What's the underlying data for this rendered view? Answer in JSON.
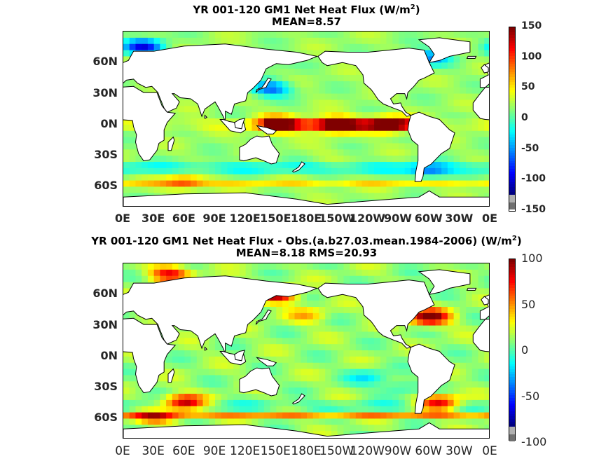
{
  "figure": {
    "panel1": {
      "title_line1": "YR 001-120 GM1  Net Heat Flux (W/m",
      "title_sup": "2",
      "title_close": ")",
      "title_line2": "MEAN=8.57",
      "colorbar_ticks": [
        "150",
        "100",
        "50",
        "0",
        "-50",
        "-100",
        "-150"
      ]
    },
    "panel2": {
      "title_line1": "YR 001-120 GM1  Net Heat Flux - Obs.(a.b27.03.mean.1984-2006) (W/m",
      "title_sup": "2",
      "title_close": ")",
      "title_line2": "MEAN=8.18 RMS=20.93",
      "colorbar_ticks": [
        "100",
        "50",
        "0",
        "-50",
        "-100"
      ]
    },
    "lat_labels": [
      "60N",
      "30N",
      "0N",
      "30S",
      "60S"
    ],
    "lon_labels": [
      "0E",
      "30E",
      "60E",
      "90E",
      "120E",
      "150E",
      "180E",
      "150W",
      "120W",
      "90W",
      "60W",
      "30W",
      "0E"
    ]
  },
  "chart_data": [
    {
      "type": "heatmap",
      "title": "YR 001-120 GM1  Net Heat Flux (W/m2)",
      "subtitle": "MEAN=8.57",
      "x_ticks": [
        "0E",
        "30E",
        "60E",
        "90E",
        "120E",
        "150E",
        "180E",
        "150W",
        "120W",
        "90W",
        "60W",
        "30W",
        "0E"
      ],
      "y_ticks": [
        "60N",
        "30N",
        "0N",
        "30S",
        "60S"
      ],
      "xlim": [
        0,
        360
      ],
      "ylim": [
        -80,
        90
      ],
      "colorbar": {
        "min": -150,
        "max": 150,
        "ticks": [
          150,
          100,
          50,
          0,
          -50,
          -100,
          -150
        ]
      },
      "features": [
        {
          "lon": 150,
          "lat": 0,
          "value": 130
        },
        {
          "lon": 210,
          "lat": 0,
          "value": 120
        },
        {
          "lon": 260,
          "lat": 0,
          "value": 110
        },
        {
          "lon": 300,
          "lat": 65,
          "value": -80
        },
        {
          "lon": 20,
          "lat": 75,
          "value": -120
        },
        {
          "lon": 145,
          "lat": 35,
          "value": -90
        },
        {
          "lon": 140,
          "lat": 60,
          "value": -20
        },
        {
          "lon": 200,
          "lat": -30,
          "value": 10
        },
        {
          "lon": 300,
          "lat": -45,
          "value": -60
        },
        {
          "lon": 60,
          "lat": -55,
          "value": 60
        }
      ]
    },
    {
      "type": "heatmap",
      "title": "YR 001-120 GM1  Net Heat Flux - Obs.(a.b27.03.mean.1984-2006) (W/m2)",
      "subtitle": "MEAN=8.18 RMS=20.93",
      "x_ticks": [
        "0E",
        "30E",
        "60E",
        "90E",
        "120E",
        "150E",
        "180E",
        "150W",
        "120W",
        "90W",
        "60W",
        "30W",
        "0E"
      ],
      "y_ticks": [
        "60N",
        "30N",
        "0N",
        "30S",
        "60S"
      ],
      "xlim": [
        0,
        360
      ],
      "ylim": [
        -80,
        90
      ],
      "colorbar": {
        "min": -100,
        "max": 100,
        "ticks": [
          100,
          50,
          0,
          -50,
          -100
        ]
      },
      "features": [
        {
          "lon": 300,
          "lat": 38,
          "value": 100
        },
        {
          "lon": 150,
          "lat": 60,
          "value": 90
        },
        {
          "lon": 60,
          "lat": -45,
          "value": 90
        },
        {
          "lon": 310,
          "lat": -45,
          "value": 80
        },
        {
          "lon": 45,
          "lat": 80,
          "value": 70
        },
        {
          "lon": 30,
          "lat": -60,
          "value": 45
        },
        {
          "lon": 180,
          "lat": 40,
          "value": 30
        },
        {
          "lon": 240,
          "lat": -20,
          "value": -30
        },
        {
          "lon": 270,
          "lat": -30,
          "value": -25
        }
      ]
    }
  ]
}
